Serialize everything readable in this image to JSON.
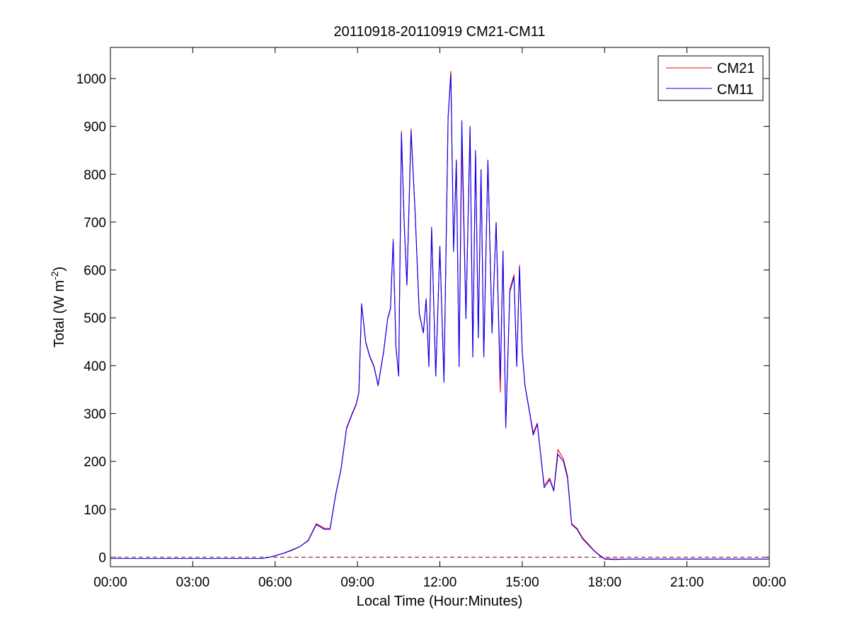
{
  "chart_data": {
    "type": "line",
    "title": "20110918-20110919 CM21-CM11",
    "xlabel": "Local Time (Hour:Minutes)",
    "ylabel": "Total (W m-2)",
    "ylabel_main": "Total (W m",
    "ylabel_sup": "-2",
    "ylabel_end": ")",
    "xlim": [
      0,
      24
    ],
    "ylim": [
      -20,
      1065
    ],
    "x_ticks": [
      0,
      3,
      6,
      9,
      12,
      15,
      18,
      21,
      24
    ],
    "x_tick_labels": [
      "00:00",
      "03:00",
      "06:00",
      "09:00",
      "12:00",
      "15:00",
      "18:00",
      "21:00",
      "00:00"
    ],
    "y_ticks": [
      0,
      100,
      200,
      300,
      400,
      500,
      600,
      700,
      800,
      900,
      1000
    ],
    "y_tick_labels": [
      "0",
      "100",
      "200",
      "300",
      "400",
      "500",
      "600",
      "700",
      "800",
      "900",
      "1000"
    ],
    "grid": false,
    "legend_position": "top-right",
    "zero_line": {
      "y": 0,
      "style": "dashed",
      "color": "#8B0000"
    },
    "series": [
      {
        "name": "CM21",
        "color": "#FF0000",
        "points": [
          [
            0,
            -3
          ],
          [
            3,
            -3
          ],
          [
            5.5,
            -3
          ],
          [
            5.8,
            0
          ],
          [
            6.0,
            3
          ],
          [
            6.3,
            8
          ],
          [
            6.6,
            15
          ],
          [
            6.9,
            22
          ],
          [
            7.2,
            35
          ],
          [
            7.5,
            70
          ],
          [
            7.8,
            60
          ],
          [
            8.0,
            60
          ],
          [
            8.2,
            130
          ],
          [
            8.4,
            185
          ],
          [
            8.6,
            270
          ],
          [
            8.8,
            300
          ],
          [
            8.95,
            320
          ],
          [
            9.05,
            345
          ],
          [
            9.15,
            530
          ],
          [
            9.3,
            450
          ],
          [
            9.45,
            420
          ],
          [
            9.6,
            400
          ],
          [
            9.75,
            360
          ],
          [
            9.95,
            430
          ],
          [
            10.1,
            500
          ],
          [
            10.2,
            520
          ],
          [
            10.3,
            665
          ],
          [
            10.4,
            440
          ],
          [
            10.5,
            380
          ],
          [
            10.6,
            890
          ],
          [
            10.7,
            700
          ],
          [
            10.8,
            570
          ],
          [
            10.95,
            895
          ],
          [
            11.1,
            720
          ],
          [
            11.25,
            510
          ],
          [
            11.4,
            470
          ],
          [
            11.5,
            540
          ],
          [
            11.6,
            400
          ],
          [
            11.7,
            690
          ],
          [
            11.85,
            380
          ],
          [
            12.0,
            650
          ],
          [
            12.15,
            370
          ],
          [
            12.3,
            920
          ],
          [
            12.4,
            1015
          ],
          [
            12.5,
            640
          ],
          [
            12.6,
            830
          ],
          [
            12.7,
            400
          ],
          [
            12.8,
            870
          ],
          [
            12.95,
            500
          ],
          [
            13.1,
            900
          ],
          [
            13.2,
            420
          ],
          [
            13.3,
            850
          ],
          [
            13.4,
            460
          ],
          [
            13.5,
            810
          ],
          [
            13.6,
            420
          ],
          [
            13.75,
            830
          ],
          [
            13.9,
            470
          ],
          [
            14.05,
            700
          ],
          [
            14.2,
            345
          ],
          [
            14.3,
            640
          ],
          [
            14.4,
            275
          ],
          [
            14.55,
            560
          ],
          [
            14.7,
            590
          ],
          [
            14.8,
            400
          ],
          [
            14.9,
            610
          ],
          [
            15.0,
            430
          ],
          [
            15.1,
            360
          ],
          [
            15.25,
            310
          ],
          [
            15.4,
            260
          ],
          [
            15.55,
            280
          ],
          [
            15.7,
            200
          ],
          [
            15.8,
            150
          ],
          [
            16.0,
            165
          ],
          [
            16.15,
            140
          ],
          [
            16.3,
            225
          ],
          [
            16.5,
            205
          ],
          [
            16.65,
            170
          ],
          [
            16.8,
            70
          ],
          [
            17.0,
            60
          ],
          [
            17.2,
            40
          ],
          [
            17.4,
            28
          ],
          [
            17.6,
            15
          ],
          [
            17.8,
            5
          ],
          [
            18.0,
            -3
          ],
          [
            18.3,
            -4
          ],
          [
            19.0,
            -4
          ],
          [
            21.0,
            -4
          ],
          [
            24.0,
            -4
          ]
        ]
      },
      {
        "name": "CM11",
        "color": "#0000FF",
        "points": [
          [
            0,
            -3
          ],
          [
            3,
            -3
          ],
          [
            5.5,
            -3
          ],
          [
            5.8,
            0
          ],
          [
            6.0,
            3
          ],
          [
            6.3,
            8
          ],
          [
            6.6,
            14
          ],
          [
            6.9,
            22
          ],
          [
            7.2,
            34
          ],
          [
            7.5,
            68
          ],
          [
            7.8,
            58
          ],
          [
            8.0,
            58
          ],
          [
            8.2,
            128
          ],
          [
            8.4,
            183
          ],
          [
            8.6,
            268
          ],
          [
            8.8,
            298
          ],
          [
            8.95,
            318
          ],
          [
            9.05,
            343
          ],
          [
            9.15,
            528
          ],
          [
            9.3,
            448
          ],
          [
            9.45,
            418
          ],
          [
            9.6,
            398
          ],
          [
            9.75,
            358
          ],
          [
            9.95,
            428
          ],
          [
            10.1,
            498
          ],
          [
            10.2,
            518
          ],
          [
            10.3,
            660
          ],
          [
            10.4,
            438
          ],
          [
            10.5,
            378
          ],
          [
            10.6,
            885
          ],
          [
            10.7,
            698
          ],
          [
            10.8,
            568
          ],
          [
            10.95,
            890
          ],
          [
            11.1,
            718
          ],
          [
            11.25,
            508
          ],
          [
            11.4,
            468
          ],
          [
            11.5,
            538
          ],
          [
            11.6,
            398
          ],
          [
            11.7,
            688
          ],
          [
            11.85,
            378
          ],
          [
            12.0,
            648
          ],
          [
            12.15,
            365
          ],
          [
            12.3,
            918
          ],
          [
            12.4,
            1010
          ],
          [
            12.5,
            638
          ],
          [
            12.6,
            828
          ],
          [
            12.7,
            398
          ],
          [
            12.8,
            912
          ],
          [
            12.95,
            498
          ],
          [
            13.1,
            898
          ],
          [
            13.2,
            418
          ],
          [
            13.3,
            848
          ],
          [
            13.4,
            458
          ],
          [
            13.5,
            808
          ],
          [
            13.6,
            418
          ],
          [
            13.75,
            828
          ],
          [
            13.9,
            468
          ],
          [
            14.05,
            698
          ],
          [
            14.2,
            370
          ],
          [
            14.3,
            638
          ],
          [
            14.4,
            270
          ],
          [
            14.55,
            555
          ],
          [
            14.7,
            585
          ],
          [
            14.8,
            398
          ],
          [
            14.9,
            605
          ],
          [
            15.0,
            428
          ],
          [
            15.1,
            358
          ],
          [
            15.25,
            308
          ],
          [
            15.4,
            255
          ],
          [
            15.55,
            278
          ],
          [
            15.7,
            198
          ],
          [
            15.8,
            145
          ],
          [
            16.0,
            162
          ],
          [
            16.15,
            138
          ],
          [
            16.3,
            215
          ],
          [
            16.5,
            200
          ],
          [
            16.65,
            165
          ],
          [
            16.8,
            68
          ],
          [
            17.0,
            58
          ],
          [
            17.2,
            38
          ],
          [
            17.4,
            26
          ],
          [
            17.6,
            14
          ],
          [
            17.8,
            4
          ],
          [
            18.0,
            -4
          ],
          [
            18.3,
            -5
          ],
          [
            19.0,
            -4
          ],
          [
            21.0,
            -4
          ],
          [
            24.0,
            -4
          ]
        ]
      }
    ]
  }
}
